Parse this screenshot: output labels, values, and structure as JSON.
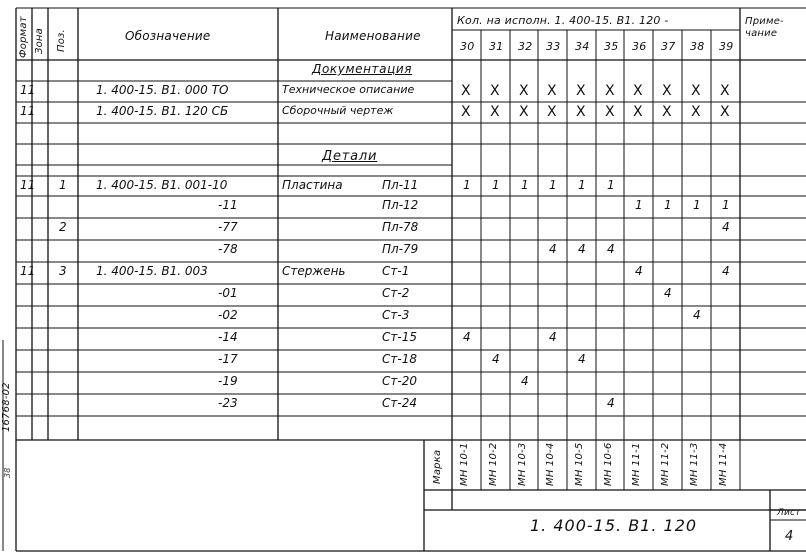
{
  "headers": {
    "format": "Формат",
    "zone": "Зона",
    "pos": "Поз.",
    "designation": "Обозначение",
    "name": "Наименование",
    "qty_title": "Кол. на исполн. 1. 400-15. В1. 120 -",
    "note": "Приме-\nчание",
    "variants": [
      "30",
      "31",
      "32",
      "33",
      "34",
      "35",
      "36",
      "37",
      "38",
      "39"
    ]
  },
  "sections": {
    "documentation": "Документация",
    "details": "Детали"
  },
  "rows": [
    {
      "fmt": "11",
      "pos": "",
      "des": "1. 400-15. В1. 000 ТО",
      "name": "Техническое описание",
      "mark": "",
      "q": [
        "X",
        "X",
        "X",
        "X",
        "X",
        "X",
        "X",
        "X",
        "X",
        "X"
      ]
    },
    {
      "fmt": "11",
      "pos": "",
      "des": "1. 400-15. В1. 120 СБ",
      "name": "Сборочный чертеж",
      "mark": "",
      "q": [
        "X",
        "X",
        "X",
        "X",
        "X",
        "X",
        "X",
        "X",
        "X",
        "X"
      ]
    },
    {
      "fmt": "11",
      "pos": "1",
      "des": "1. 400-15. В1. 001-10",
      "name": "Пластина",
      "mark": "Пл-11",
      "q": [
        "1",
        "1",
        "1",
        "1",
        "1",
        "1",
        "",
        "",
        "",
        ""
      ]
    },
    {
      "fmt": "",
      "pos": "",
      "des": "-11",
      "name": "",
      "mark": "Пл-12",
      "q": [
        "",
        "",
        "",
        "",
        "",
        "",
        "1",
        "1",
        "1",
        "1"
      ]
    },
    {
      "fmt": "",
      "pos": "2",
      "des": "-77",
      "name": "",
      "mark": "Пл-78",
      "q": [
        "",
        "",
        "",
        "",
        "",
        "",
        "",
        "",
        "",
        "4"
      ]
    },
    {
      "fmt": "",
      "pos": "",
      "des": "-78",
      "name": "",
      "mark": "Пл-79",
      "q": [
        "",
        "",
        "",
        "4",
        "4",
        "4",
        "",
        "",
        "",
        ""
      ]
    },
    {
      "fmt": "11",
      "pos": "3",
      "des": "1. 400-15. В1. 003",
      "name": "Стержень",
      "mark": "Ст-1",
      "q": [
        "",
        "",
        "",
        "",
        "",
        "",
        "4",
        "",
        "",
        "4"
      ]
    },
    {
      "fmt": "",
      "pos": "",
      "des": "-01",
      "name": "",
      "mark": "Ст-2",
      "q": [
        "",
        "",
        "",
        "",
        "",
        "",
        "",
        "4",
        "",
        ""
      ]
    },
    {
      "fmt": "",
      "pos": "",
      "des": "-02",
      "name": "",
      "mark": "Ст-3",
      "q": [
        "",
        "",
        "",
        "",
        "",
        "",
        "",
        "",
        "4",
        ""
      ]
    },
    {
      "fmt": "",
      "pos": "",
      "des": "-14",
      "name": "",
      "mark": "Ст-15",
      "q": [
        "4",
        "",
        "",
        "4",
        "",
        "",
        "",
        "",
        "",
        ""
      ]
    },
    {
      "fmt": "",
      "pos": "",
      "des": "-17",
      "name": "",
      "mark": "Ст-18",
      "q": [
        "",
        "4",
        "",
        "",
        "4",
        "",
        "",
        "",
        "",
        ""
      ]
    },
    {
      "fmt": "",
      "pos": "",
      "des": "-19",
      "name": "",
      "mark": "Ст-20",
      "q": [
        "",
        "",
        "4",
        "",
        "",
        "",
        "",
        "",
        "",
        ""
      ]
    },
    {
      "fmt": "",
      "pos": "",
      "des": "-23",
      "name": "",
      "mark": "Ст-24",
      "q": [
        "",
        "",
        "",
        "",
        "",
        "4",
        "",
        "",
        "",
        ""
      ]
    }
  ],
  "marka": {
    "label": "Марка",
    "values": [
      "МН 10-1",
      "МН 10-2",
      "МН 10-3",
      "МН 10-4",
      "МН 10-5",
      "МН 10-6",
      "МН 11-1",
      "МН 11-2",
      "МН 11-3",
      "МН 11-4"
    ]
  },
  "stamp": {
    "code": "1. 400-15. В1. 120",
    "sheet_label": "Лист",
    "sheet_no": "4"
  },
  "side_text": {
    "archive_no": "16768-02",
    "small": "38"
  }
}
